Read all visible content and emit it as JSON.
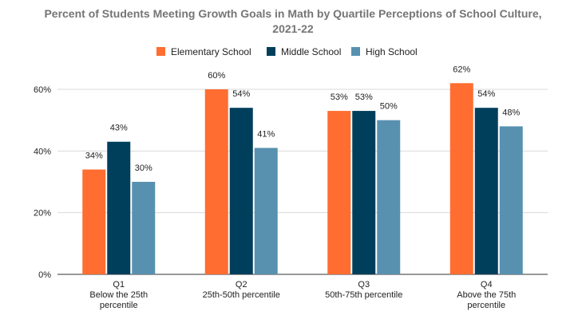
{
  "chart_data": {
    "type": "bar",
    "title_lines": [
      "Percent of Students Meeting Growth Goals in Math by Quartile Perceptions of School Culture,",
      "2021-22"
    ],
    "categories": [
      [
        "Q1",
        "Below the 25th",
        "percentile"
      ],
      [
        "Q2",
        "25th-50th percentile"
      ],
      [
        "Q3",
        "50th-75th percentile"
      ],
      [
        "Q4",
        "Above the 75th",
        "percentile"
      ]
    ],
    "series": [
      {
        "name": "Elementary School",
        "color": "#ff6d31",
        "values": [
          34,
          60,
          53,
          62
        ],
        "labels": [
          "34%",
          "60%",
          "53%",
          "62%"
        ]
      },
      {
        "name": "Middle School",
        "color": "#003f5c",
        "values": [
          43,
          54,
          53,
          54
        ],
        "labels": [
          "43%",
          "54%",
          "53%",
          "54%"
        ]
      },
      {
        "name": "High School",
        "color": "#5891b0",
        "values": [
          30,
          41,
          50,
          48
        ],
        "labels": [
          "30%",
          "41%",
          "50%",
          "48%"
        ]
      }
    ],
    "y_ticks": [
      0,
      20,
      40,
      60
    ],
    "y_tick_labels": [
      "0%",
      "20%",
      "40%",
      "60%"
    ],
    "ylim": [
      0,
      60
    ],
    "grid": true,
    "legend_position": "top-center",
    "xlabel": "",
    "ylabel": ""
  }
}
